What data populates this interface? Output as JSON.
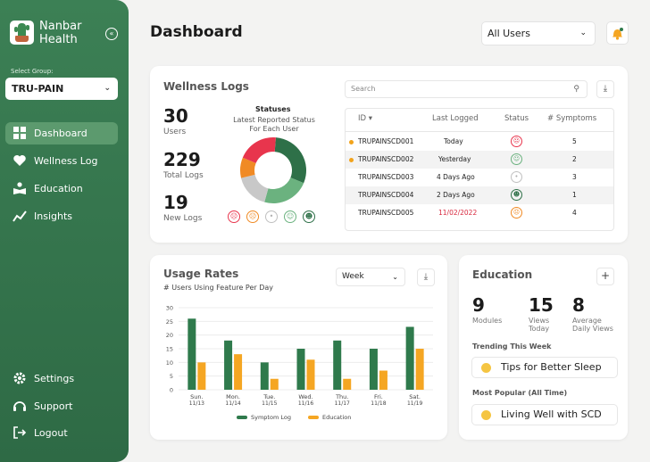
{
  "brand": {
    "line1": "Nanbar",
    "line2": "Health"
  },
  "sidebar": {
    "select_label": "Select Group:",
    "group_value": "TRU-PAIN",
    "nav": [
      {
        "label": "Dashboard",
        "icon": "grid-icon",
        "active": true
      },
      {
        "label": "Wellness Log",
        "icon": "heart-icon",
        "active": false
      },
      {
        "label": "Education",
        "icon": "book-icon",
        "active": false
      },
      {
        "label": "Insights",
        "icon": "chart-line-icon",
        "active": false
      }
    ],
    "bottom": [
      {
        "label": "Settings",
        "icon": "gear-icon"
      },
      {
        "label": "Support",
        "icon": "headset-icon"
      },
      {
        "label": "Logout",
        "icon": "logout-icon"
      }
    ]
  },
  "header": {
    "title": "Dashboard",
    "user_filter": "All Users"
  },
  "wellness": {
    "title": "Wellness Logs",
    "stats": [
      {
        "value": "30",
        "label": "Users"
      },
      {
        "value": "229",
        "label": "Total Logs"
      },
      {
        "value": "19",
        "label": "New Logs"
      }
    ],
    "statuses_title": "Statuses",
    "statuses_subtitle": "Latest Reported Status For Each User",
    "search_placeholder": "Search",
    "table": {
      "headers": [
        "ID",
        "Last Logged",
        "Status",
        "# Symptoms"
      ],
      "rows": [
        {
          "id": "TRUPAINSCD001",
          "last": "Today",
          "status": "very-sad",
          "symptoms": "5",
          "flag": true
        },
        {
          "id": "TRUPAINSCD002",
          "last": "Yesterday",
          "status": "happy",
          "symptoms": "2",
          "flag": true
        },
        {
          "id": "TRUPAINSCD003",
          "last": "4 Days Ago",
          "status": "neutral",
          "symptoms": "3",
          "flag": false
        },
        {
          "id": "TRUPAINSCD004",
          "last": "2 Days Ago",
          "status": "very-happy",
          "symptoms": "1",
          "flag": false
        },
        {
          "id": "TRUPAINSCD005",
          "last": "11/02/2022",
          "status": "sad",
          "symptoms": "4",
          "flag": false,
          "overdue": true
        }
      ]
    },
    "donut": [
      {
        "status": "very-happy",
        "value": 30,
        "color": "#2e7048"
      },
      {
        "status": "happy",
        "value": 23,
        "color": "#6bb27f"
      },
      {
        "status": "neutral",
        "value": 17,
        "color": "#c8c8c8"
      },
      {
        "status": "sad",
        "value": 10,
        "color": "#f08a24"
      },
      {
        "status": "very-sad",
        "value": 20,
        "color": "#e8354d"
      }
    ]
  },
  "usage": {
    "title": "Usage Rates",
    "subtitle": "# Users Using Feature Per Day",
    "range": "Week",
    "chart_data": {
      "type": "bar",
      "categories": [
        "Sun.",
        "Mon.",
        "Tue.",
        "Wed.",
        "Thu.",
        "Fri.",
        "Sat."
      ],
      "category_dates": [
        "11/13",
        "11/14",
        "11/15",
        "11/16",
        "11/17",
        "11/18",
        "11/19"
      ],
      "series": [
        {
          "name": "Symptom Log",
          "values": [
            26,
            18,
            10,
            15,
            18,
            15,
            23
          ],
          "color": "#2f7a4c"
        },
        {
          "name": "Education",
          "values": [
            10,
            13,
            4,
            11,
            4,
            7,
            15
          ],
          "color": "#f5a623"
        }
      ],
      "ylim": [
        0,
        30
      ],
      "yticks": [
        0,
        5,
        10,
        15,
        20,
        25,
        30
      ],
      "grid": true,
      "legend": "bottom"
    }
  },
  "education": {
    "title": "Education",
    "stats": [
      {
        "value": "9",
        "label": "Modules"
      },
      {
        "value": "15",
        "label": "Views Today"
      },
      {
        "value": "8",
        "label": "Average Daily Views"
      }
    ],
    "trending_label": "Trending This Week",
    "trending_item": "Tips for Better Sleep",
    "popular_label": "Most Popular (All Time)",
    "popular_item": "Living Well with SCD"
  }
}
